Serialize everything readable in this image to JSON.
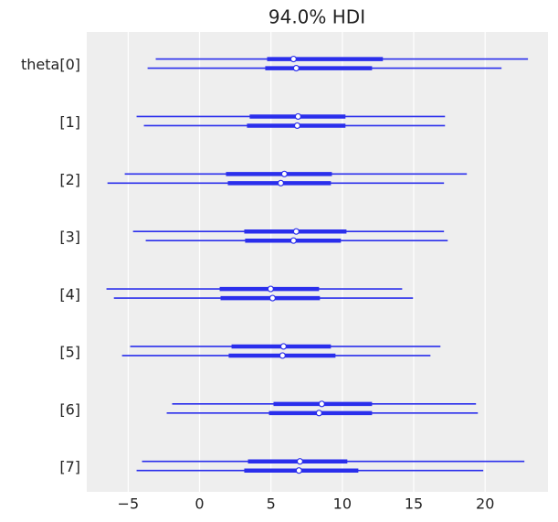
{
  "chart_data": {
    "type": "forest",
    "title": "94.0% HDI",
    "color": "#2a2eec",
    "grid": true,
    "xlim": [
      -7.9,
      24.4
    ],
    "xticks": [
      {
        "value": -5,
        "label": "−5"
      },
      0,
      5,
      10,
      15,
      20
    ],
    "rows": [
      {
        "label": "theta[0]",
        "chains": [
          {
            "hdi": [
              -3.07,
              23.0
            ],
            "iqr": [
              4.73,
              12.84
            ],
            "median": 6.58
          },
          {
            "hdi": [
              -3.64,
              21.15
            ],
            "iqr": [
              4.6,
              12.08
            ],
            "median": 6.77
          }
        ]
      },
      {
        "label": "[1]",
        "chains": [
          {
            "hdi": [
              -4.41,
              17.19
            ],
            "iqr": [
              3.51,
              10.22
            ],
            "median": 6.9
          },
          {
            "hdi": [
              -3.9,
              17.19
            ],
            "iqr": [
              3.32,
              10.22
            ],
            "median": 6.84
          }
        ]
      },
      {
        "label": "[2]",
        "chains": [
          {
            "hdi": [
              -5.24,
              18.72
            ],
            "iqr": [
              1.85,
              9.27
            ],
            "median": 5.94
          },
          {
            "hdi": [
              -6.45,
              17.12
            ],
            "iqr": [
              1.98,
              9.2
            ],
            "median": 5.69
          }
        ]
      },
      {
        "label": "[3]",
        "chains": [
          {
            "hdi": [
              -4.66,
              17.12
            ],
            "iqr": [
              3.13,
              10.29
            ],
            "median": 6.77
          },
          {
            "hdi": [
              -3.77,
              17.38
            ],
            "iqr": [
              3.19,
              9.9
            ],
            "median": 6.58
          }
        ]
      },
      {
        "label": "[4]",
        "chains": [
          {
            "hdi": [
              -6.52,
              14.19
            ],
            "iqr": [
              1.41,
              8.37
            ],
            "median": 4.98
          },
          {
            "hdi": [
              -6.0,
              14.95
            ],
            "iqr": [
              1.47,
              8.43
            ],
            "median": 5.11
          }
        ]
      },
      {
        "label": "[5]",
        "chains": [
          {
            "hdi": [
              -4.86,
              16.87
            ],
            "iqr": [
              2.24,
              9.2
            ],
            "median": 5.88
          },
          {
            "hdi": [
              -5.43,
              16.17
            ],
            "iqr": [
              2.04,
              9.52
            ],
            "median": 5.81
          }
        ]
      },
      {
        "label": "[6]",
        "chains": [
          {
            "hdi": [
              -1.92,
              19.36
            ],
            "iqr": [
              5.18,
              12.08
            ],
            "median": 8.56
          },
          {
            "hdi": [
              -2.3,
              19.49
            ],
            "iqr": [
              4.86,
              12.08
            ],
            "median": 8.37
          }
        ]
      },
      {
        "label": "[7]",
        "chains": [
          {
            "hdi": [
              -4.03,
              22.75
            ],
            "iqr": [
              3.39,
              10.35
            ],
            "median": 7.03
          },
          {
            "hdi": [
              -4.41,
              19.87
            ],
            "iqr": [
              3.13,
              11.12
            ],
            "median": 6.96
          }
        ]
      }
    ]
  }
}
